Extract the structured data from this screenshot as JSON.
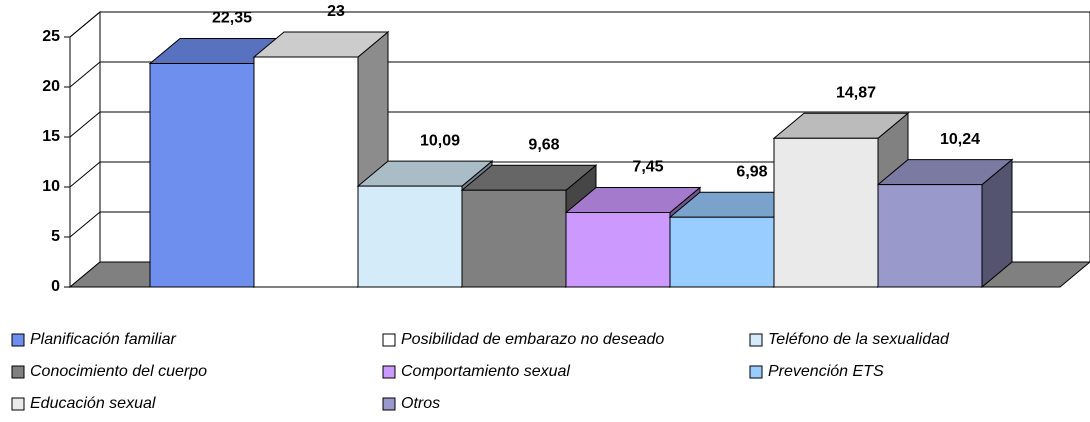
{
  "chart_data": {
    "type": "bar3d",
    "ylim": [
      0,
      25
    ],
    "yticks": [
      0,
      5,
      10,
      15,
      20,
      25
    ],
    "grid": true,
    "series": [
      {
        "name": "Planificación familiar",
        "color": "#6f8fef",
        "values": [
          22.35
        ],
        "value_labels": [
          "22,35"
        ]
      },
      {
        "name": "Posibilidad de embarazo no deseado",
        "color": "#ffffff",
        "values": [
          23
        ],
        "value_labels": [
          "23"
        ]
      },
      {
        "name": "Teléfono de la sexualidad",
        "color": "#d4ecf9",
        "values": [
          10.09
        ],
        "value_labels": [
          "10,09"
        ]
      },
      {
        "name": "Conocimiento del cuerpo",
        "color": "#808080",
        "values": [
          9.68
        ],
        "value_labels": [
          "9,68"
        ]
      },
      {
        "name": "Comportamiento sexual",
        "color": "#cc99ff",
        "values": [
          7.45
        ],
        "value_labels": [
          "7,45"
        ]
      },
      {
        "name": "Prevención ETS",
        "color": "#99ccff",
        "values": [
          6.98
        ],
        "value_labels": [
          "6,98"
        ]
      },
      {
        "name": "Educación sexual",
        "color": "#eaeaea",
        "values": [
          14.87
        ],
        "value_labels": [
          "14,87"
        ]
      },
      {
        "name": "Otros",
        "color": "#9999cc",
        "values": [
          10.24
        ],
        "value_labels": [
          "10,24"
        ]
      }
    ]
  }
}
